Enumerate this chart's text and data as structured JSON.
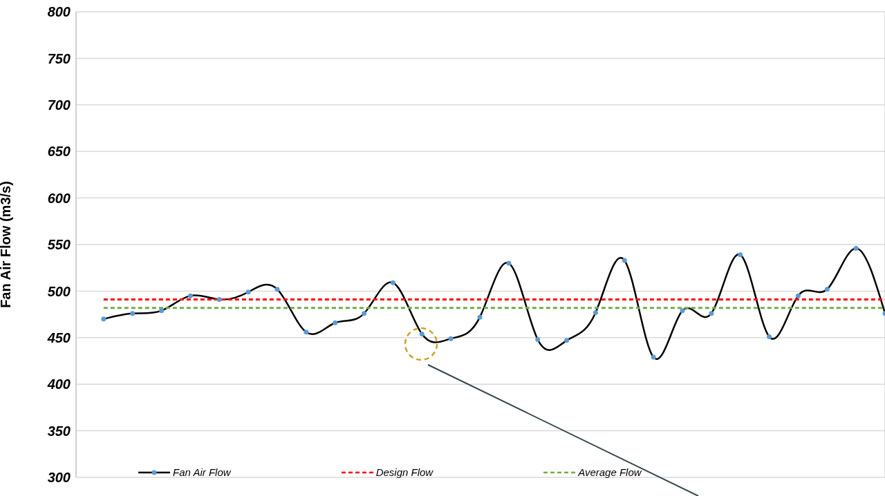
{
  "chart_data": {
    "type": "line",
    "ylabel": "Fan Air Flow (m3/s)",
    "categories": [
      null,
      null,
      null,
      null,
      null,
      null,
      null,
      null,
      null,
      null,
      null,
      null,
      null,
      null,
      null,
      null,
      null,
      null,
      null,
      null,
      null,
      null,
      null,
      null,
      null,
      null,
      null,
      null
    ],
    "series": [
      {
        "name": "Fan Air Flow",
        "color": "#000000",
        "marker": "circle",
        "line_style": "solid",
        "values": [
          470,
          476,
          479,
          495,
          491,
          499,
          502,
          456,
          466,
          476,
          509,
          454,
          449,
          472,
          530,
          448,
          447,
          477,
          533,
          429,
          479,
          476,
          539,
          451,
          495,
          502,
          546,
          476
        ]
      },
      {
        "name": "Design Flow",
        "color": "#ff0000",
        "marker": "none",
        "line_style": "dashed",
        "values": [
          491,
          491,
          491,
          491,
          491,
          491,
          491,
          491,
          491,
          491,
          491,
          491,
          491,
          491,
          491,
          491,
          491,
          491,
          491,
          491,
          491,
          491,
          491,
          491,
          491,
          491,
          491,
          491
        ]
      },
      {
        "name": "Average Flow",
        "color": "#70ad47",
        "marker": "none",
        "line_style": "dashed",
        "values": [
          482,
          482,
          482,
          482,
          482,
          482,
          482,
          482,
          482,
          482,
          482,
          482,
          482,
          482,
          482,
          482,
          482,
          482,
          482,
          482,
          482,
          482,
          482,
          482,
          482,
          482,
          482,
          482
        ]
      }
    ],
    "ylim": [
      300,
      800
    ],
    "yticks": [
      300,
      350,
      400,
      450,
      500,
      550,
      600,
      650,
      700,
      750,
      800
    ],
    "grid": true,
    "legend": "bottom",
    "tick_labels": "y"
  }
}
